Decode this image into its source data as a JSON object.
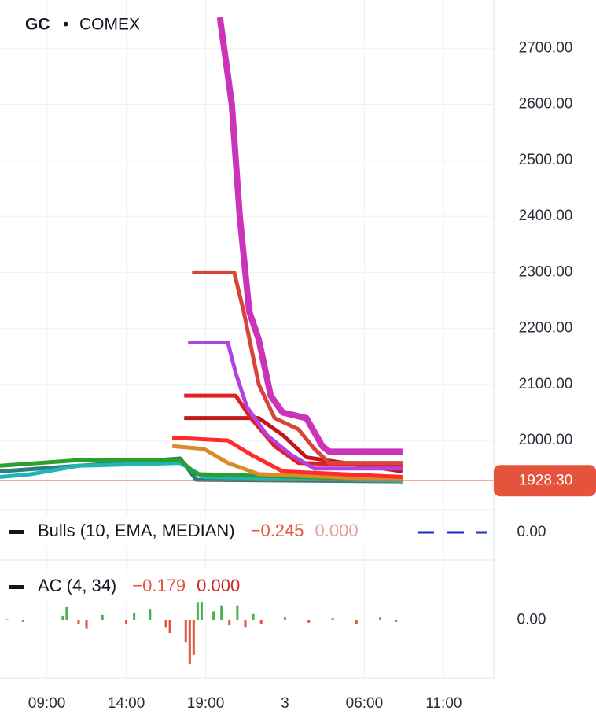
{
  "header": {
    "symbol": "GC",
    "separator": "•",
    "exchange": "COMEX"
  },
  "chart_data": [
    {
      "type": "line",
      "xlim": [
        -0.59,
        5.63
      ],
      "xticks": [
        {
          "value": 0,
          "label": "09:00"
        },
        {
          "value": 1,
          "label": "14:00"
        },
        {
          "value": 2,
          "label": "19:00"
        },
        {
          "value": 3,
          "label": "3"
        },
        {
          "value": 4,
          "label": "06:00"
        },
        {
          "value": 5,
          "label": "11:00"
        }
      ],
      "ylim": [
        1895,
        2786
      ],
      "yticks": [
        {
          "value": 2000,
          "label": "2000.00"
        },
        {
          "value": 2100,
          "label": "2100.00"
        },
        {
          "value": 2200,
          "label": "2200.00"
        },
        {
          "value": 2300,
          "label": "2300.00"
        },
        {
          "value": 2400,
          "label": "2400.00"
        },
        {
          "value": 2500,
          "label": "2500.00"
        },
        {
          "value": 2600,
          "label": "2600.00"
        },
        {
          "value": 2700,
          "label": "2700.00"
        }
      ],
      "last_price": {
        "value": 1928.3,
        "label": "1928.30"
      },
      "grid": true,
      "series": [
        {
          "color": "#2b7f7f",
          "x": [
            -0.59,
            1.68,
            1.88,
            4.48
          ],
          "values": [
            1945,
            1968,
            1930,
            1927
          ]
        },
        {
          "color": "#1fb5b5",
          "x": [
            -0.59,
            -0.2,
            0.4,
            1.68,
            1.98,
            4.48
          ],
          "values": [
            1935,
            1940,
            1955,
            1960,
            1935,
            1928
          ]
        },
        {
          "color": "#2ca02c",
          "x": [
            -0.59,
            0.4,
            1.68,
            1.88,
            4.48
          ],
          "values": [
            1955,
            1965,
            1965,
            1940,
            1930
          ]
        },
        {
          "color": "#d98a2a",
          "x": [
            1.58,
            1.98,
            2.28,
            2.67,
            4.48
          ],
          "values": [
            1990,
            1985,
            1960,
            1940,
            1930
          ]
        },
        {
          "color": "#ff2a2a",
          "x": [
            1.58,
            2.28,
            2.57,
            2.97,
            4.48
          ],
          "values": [
            2005,
            2000,
            1975,
            1945,
            1935
          ]
        },
        {
          "color": "#c01818",
          "x": [
            1.73,
            2.67,
            2.97,
            3.27,
            4.48
          ],
          "values": [
            2040,
            2040,
            2010,
            1970,
            1945
          ]
        },
        {
          "color": "#e02020",
          "x": [
            1.73,
            2.38,
            2.57,
            2.87,
            3.17,
            4.48
          ],
          "values": [
            2080,
            2080,
            2040,
            1990,
            1960,
            1955
          ]
        },
        {
          "color": "#b542e0",
          "x": [
            1.78,
            2.28,
            2.38,
            2.52,
            2.77,
            3.07,
            3.37,
            4.48
          ],
          "values": [
            2175,
            2175,
            2120,
            2060,
            2010,
            1975,
            1950,
            1950
          ]
        },
        {
          "color": "#d9443a",
          "x": [
            1.83,
            2.36,
            2.48,
            2.67,
            2.87,
            3.17,
            3.37,
            3.56,
            4.48
          ],
          "values": [
            2300,
            2300,
            2230,
            2100,
            2040,
            2020,
            1985,
            1960,
            1960
          ]
        },
        {
          "color": "#cc33bb",
          "x": [
            2.18,
            2.33,
            2.43,
            2.55,
            2.67,
            2.82,
            2.97,
            3.27,
            3.47,
            3.56,
            4.48
          ],
          "values": [
            2755,
            2600,
            2400,
            2230,
            2180,
            2080,
            2050,
            2040,
            1990,
            1980,
            1980
          ]
        }
      ]
    },
    {
      "type": "indicator",
      "title": "Bulls (10, EMA, MEDIAN)",
      "legend_values": [
        -0.245,
        0
      ],
      "legend_value_labels": [
        "−0.245",
        "0.000"
      ],
      "ylim": [
        -1,
        1
      ],
      "yticks": [
        {
          "value": 0,
          "label": "0.00"
        }
      ]
    },
    {
      "type": "bar",
      "title": "AC (4, 34)",
      "legend_values": [
        -0.179,
        0
      ],
      "legend_value_labels": [
        "−0.179",
        "0.000"
      ],
      "up_color": "#4caf50",
      "down_color": "#e5533d",
      "x": [
        -0.5,
        -0.3,
        0.2,
        0.25,
        0.4,
        0.5,
        0.7,
        1.0,
        1.1,
        1.3,
        1.5,
        1.55,
        1.75,
        1.8,
        1.85,
        1.9,
        1.95,
        2.1,
        2.2,
        2.3,
        2.4,
        2.5,
        2.6,
        2.7,
        3.0,
        3.3,
        3.6,
        3.9,
        4.2,
        4.4
      ],
      "values": [
        0.01,
        -0.02,
        0.05,
        0.15,
        -0.05,
        -0.1,
        0.06,
        -0.04,
        0.08,
        0.12,
        -0.08,
        -0.15,
        -0.25,
        -0.5,
        -0.4,
        0.2,
        0.25,
        0.1,
        0.17,
        -0.06,
        0.17,
        -0.08,
        0.07,
        -0.04,
        0.03,
        -0.03,
        0.02,
        -0.05,
        0.03,
        -0.02
      ],
      "ylim": [
        -0.6,
        0.6
      ],
      "yticks": [
        {
          "value": 0,
          "label": "0.00"
        }
      ]
    }
  ]
}
